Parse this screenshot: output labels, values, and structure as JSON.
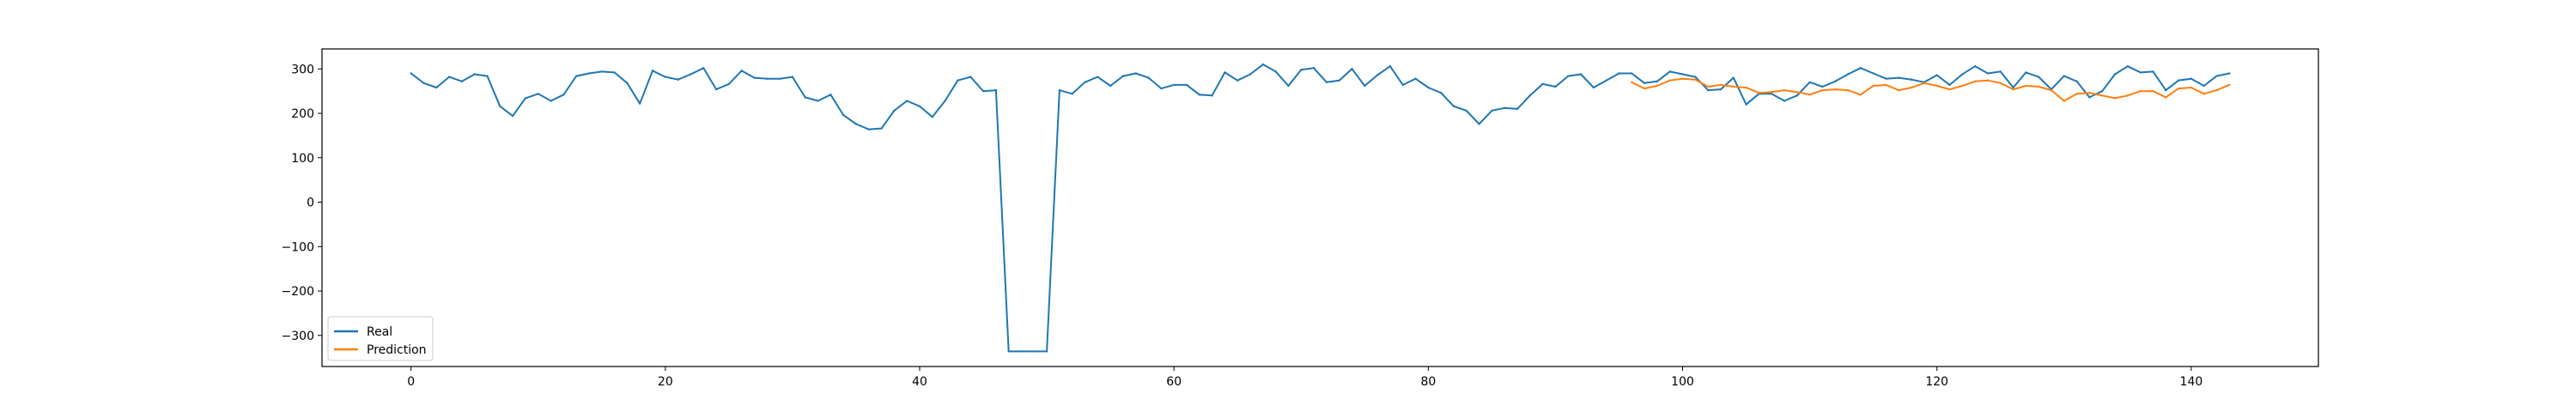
{
  "chart_data": {
    "type": "line",
    "title": "",
    "xlabel": "",
    "ylabel": "",
    "xlim": [
      -7,
      150
    ],
    "ylim": [
      -370,
      345
    ],
    "xticks": [
      0,
      20,
      40,
      60,
      80,
      100,
      120,
      140
    ],
    "yticks": [
      -300,
      -200,
      -100,
      0,
      100,
      200,
      300
    ],
    "grid": false,
    "legend": "lower-left",
    "series": [
      {
        "name": "Real",
        "color": "#1f77b4",
        "x0": 0,
        "values": [
          290,
          268,
          258,
          282,
          272,
          288,
          284,
          216,
          194,
          234,
          244,
          228,
          242,
          284,
          290,
          294,
          292,
          268,
          222,
          296,
          282,
          276,
          288,
          302,
          254,
          266,
          296,
          280,
          278,
          278,
          282,
          236,
          228,
          242,
          196,
          176,
          164,
          166,
          206,
          228,
          216,
          192,
          228,
          274,
          282,
          250,
          252,
          -336,
          -336,
          -336,
          -336,
          252,
          244,
          270,
          282,
          262,
          284,
          290,
          280,
          256,
          264,
          264,
          242,
          240,
          292,
          274,
          288,
          310,
          294,
          262,
          298,
          302,
          270,
          274,
          300,
          262,
          286,
          306,
          264,
          278,
          258,
          246,
          216,
          206,
          176,
          206,
          212,
          210,
          240,
          266,
          260,
          284,
          288,
          258,
          274,
          290,
          290,
          268,
          272,
          294,
          288,
          282,
          252,
          254,
          280,
          220,
          244,
          244,
          228,
          240,
          270,
          260,
          272,
          288,
          302,
          290,
          278,
          280,
          276,
          270,
          286,
          264,
          288,
          306,
          290,
          294,
          258,
          292,
          282,
          254,
          284,
          272,
          236,
          250,
          288,
          306,
          292,
          294,
          252,
          274,
          278,
          262,
          284,
          290
        ]
      },
      {
        "name": "Prediction",
        "color": "#ff7f0e",
        "x0": 96,
        "values": [
          270,
          256,
          262,
          274,
          278,
          276,
          260,
          264,
          260,
          258,
          246,
          248,
          252,
          248,
          242,
          252,
          254,
          252,
          242,
          262,
          264,
          252,
          258,
          268,
          262,
          254,
          262,
          272,
          274,
          268,
          254,
          262,
          260,
          252,
          228,
          244,
          246,
          240,
          234,
          240,
          250,
          250,
          236,
          256,
          258,
          244,
          252,
          264
        ]
      }
    ]
  }
}
